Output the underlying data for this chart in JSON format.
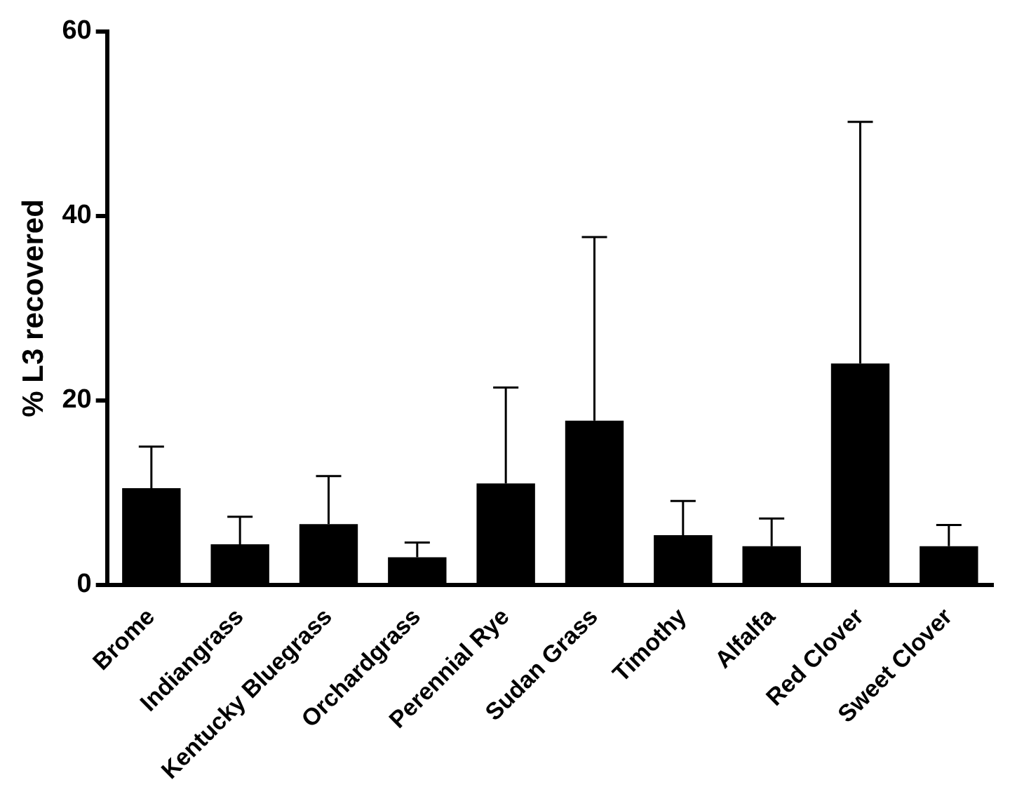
{
  "chart_data": {
    "type": "bar",
    "ylabel": "% L3 recovered",
    "categories": [
      "Brome",
      "Indiangrass",
      "Kentucky Bluegrass",
      "Orchardgrass",
      "Perennial Rye",
      "Sudan Grass",
      "Timothy",
      "Alfalfa",
      "Red Clover",
      "Sweet Clover"
    ],
    "values": [
      10.5,
      4.4,
      6.6,
      3.0,
      11.0,
      17.8,
      5.4,
      4.2,
      24.0,
      4.2
    ],
    "errors": [
      [
        10.5,
        15.0
      ],
      [
        4.4,
        7.4
      ],
      [
        6.6,
        11.8
      ],
      [
        3.0,
        4.6
      ],
      [
        11.0,
        21.4
      ],
      [
        17.8,
        37.7
      ],
      [
        5.4,
        9.1
      ],
      [
        4.2,
        7.2
      ],
      [
        24.0,
        50.2
      ],
      [
        4.2,
        6.5
      ]
    ],
    "color": "#000000",
    "ylim": [
      0,
      60
    ],
    "yticks": [
      0,
      20,
      40,
      60
    ],
    "grid": false,
    "legend": false
  }
}
